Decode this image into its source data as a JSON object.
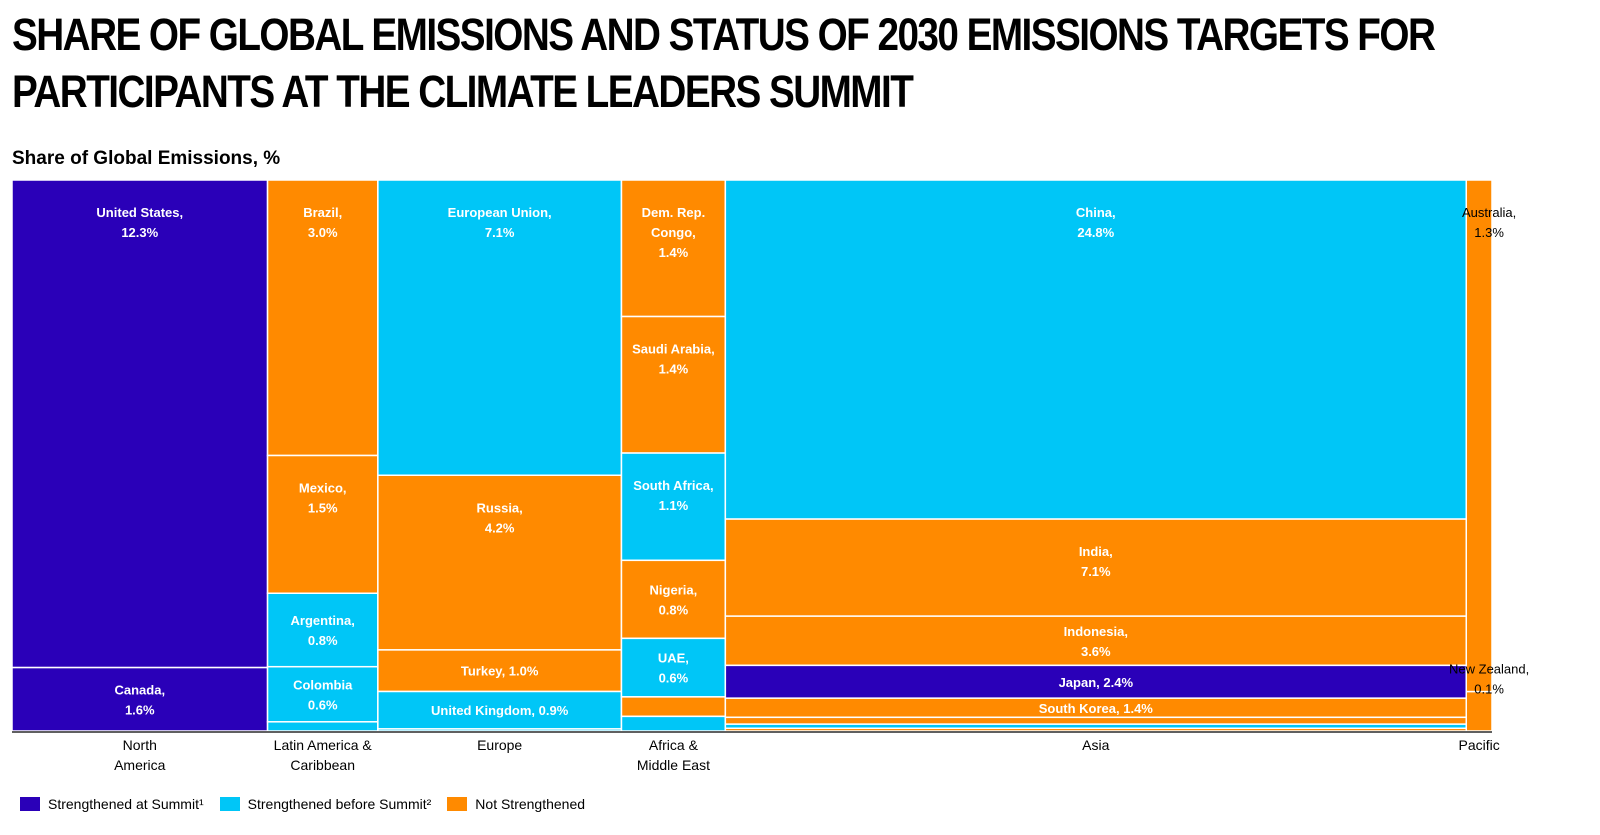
{
  "title_lines": [
    "SHARE OF GLOBAL EMISSIONS AND STATUS OF 2030 EMISSIONS TARGETS FOR",
    "PARTICIPANTS AT THE CLIMATE LEADERS SUMMIT"
  ],
  "colors": {
    "strengthened_at_summit": "#2a00b8",
    "strengthened_before_summit": "#00c6f7",
    "not_strengthened": "#ff8a00"
  },
  "chart_data": {
    "type": "mosaic",
    "title": "SHARE OF GLOBAL EMISSIONS AND STATUS OF 2030 EMISSIONS TARGETS FOR PARTICIPANTS AT THE CLIMATE LEADERS SUMMIT",
    "ylabel": "Share of Global Emissions, %",
    "legend": [
      {
        "key": "strengthened_at_summit",
        "label": "Strengthened at Summit¹"
      },
      {
        "key": "strengthened_before_summit",
        "label": "Strengthened before Summit²"
      },
      {
        "key": "not_strengthened",
        "label": "Not Strengthened"
      }
    ],
    "legend_position": "bottom-left",
    "regions": [
      {
        "name": "North America",
        "label_lines": [
          "North",
          "America"
        ],
        "countries": [
          {
            "name": "United States",
            "label_lines": [
              "United States,",
              "12.3%"
            ],
            "value": 12.3,
            "status": "strengthened_at_summit"
          },
          {
            "name": "Canada",
            "label_lines": [
              "Canada,",
              "1.6%"
            ],
            "value": 1.6,
            "status": "strengthened_at_summit"
          }
        ]
      },
      {
        "name": "Latin America & Caribbean",
        "label_lines": [
          "Latin America &",
          "Caribbean"
        ],
        "countries": [
          {
            "name": "Brazil",
            "label_lines": [
              "Brazil,",
              "3.0%"
            ],
            "value": 3.0,
            "status": "not_strengthened"
          },
          {
            "name": "Mexico",
            "label_lines": [
              "Mexico,",
              "1.5%"
            ],
            "value": 1.5,
            "status": "not_strengthened"
          },
          {
            "name": "Argentina",
            "label_lines": [
              "Argentina,",
              "0.8%"
            ],
            "value": 0.8,
            "status": "strengthened_before_summit"
          },
          {
            "name": "Colombia",
            "label_lines": [
              "Colombia",
              "0.6%"
            ],
            "value": 0.6,
            "status": "strengthened_before_summit"
          },
          {
            "name": "",
            "label_lines": [],
            "value": 0.1,
            "status": "strengthened_before_summit"
          }
        ]
      },
      {
        "name": "Europe",
        "label_lines": [
          "Europe"
        ],
        "countries": [
          {
            "name": "European Union",
            "label_lines": [
              "European Union,",
              "7.1%"
            ],
            "value": 7.1,
            "status": "strengthened_before_summit"
          },
          {
            "name": "Russia",
            "label_lines": [
              "Russia,",
              "4.2%"
            ],
            "value": 4.2,
            "status": "not_strengthened"
          },
          {
            "name": "Turkey",
            "label_lines": [
              "Turkey, 1.0%"
            ],
            "value": 1.0,
            "status": "not_strengthened"
          },
          {
            "name": "United Kingdom",
            "label_lines": [
              "United Kingdom, 0.9%"
            ],
            "value": 0.9,
            "status": "strengthened_before_summit"
          },
          {
            "name": "",
            "label_lines": [],
            "value": 0.05,
            "status": "strengthened_before_summit"
          }
        ]
      },
      {
        "name": "Africa & Middle East",
        "label_lines": [
          "Africa &",
          "Middle East"
        ],
        "countries": [
          {
            "name": "Dem. Rep. Congo",
            "label_lines": [
              "Dem. Rep.",
              "Congo,",
              "1.4%"
            ],
            "value": 1.4,
            "status": "not_strengthened"
          },
          {
            "name": "Saudi Arabia",
            "label_lines": [
              "Saudi Arabia,",
              "1.4%"
            ],
            "value": 1.4,
            "status": "not_strengthened"
          },
          {
            "name": "South Africa",
            "label_lines": [
              "South Africa,",
              "1.1%"
            ],
            "value": 1.1,
            "status": "strengthened_before_summit"
          },
          {
            "name": "Nigeria",
            "label_lines": [
              "Nigeria,",
              "0.8%"
            ],
            "value": 0.8,
            "status": "not_strengthened"
          },
          {
            "name": "UAE",
            "label_lines": [
              "UAE,",
              "0.6%"
            ],
            "value": 0.6,
            "status": "strengthened_before_summit"
          },
          {
            "name": "",
            "label_lines": [],
            "value": 0.2,
            "status": "not_strengthened"
          },
          {
            "name": "",
            "label_lines": [],
            "value": 0.15,
            "status": "strengthened_before_summit"
          }
        ]
      },
      {
        "name": "Asia",
        "label_lines": [
          "Asia"
        ],
        "countries": [
          {
            "name": "China",
            "label_lines": [
              "China,",
              "24.8%"
            ],
            "value": 24.8,
            "status": "strengthened_before_summit"
          },
          {
            "name": "India",
            "label_lines": [
              "India,",
              "7.1%"
            ],
            "value": 7.1,
            "status": "not_strengthened"
          },
          {
            "name": "Indonesia",
            "label_lines": [
              "Indonesia,",
              "3.6%"
            ],
            "value": 3.6,
            "status": "not_strengthened"
          },
          {
            "name": "Japan",
            "label_lines": [
              "Japan, 2.4%"
            ],
            "value": 2.4,
            "status": "strengthened_at_summit"
          },
          {
            "name": "South Korea",
            "label_lines": [
              "South Korea, 1.4%"
            ],
            "value": 1.4,
            "status": "not_strengthened"
          },
          {
            "name": "",
            "label_lines": [],
            "value": 0.5,
            "status": "not_strengthened"
          },
          {
            "name": "",
            "label_lines": [],
            "value": 0.3,
            "status": "strengthened_before_summit"
          },
          {
            "name": "",
            "label_lines": [],
            "value": 0.2,
            "status": "not_strengthened"
          }
        ]
      },
      {
        "name": "Pacific",
        "label_lines": [
          "Pacific"
        ],
        "countries": [
          {
            "name": "Australia",
            "label_lines": [
              "Australia,",
              "1.3%"
            ],
            "value": 1.3,
            "status": "not_strengthened"
          },
          {
            "name": "New Zealand",
            "label_lines": [
              "New Zealand,",
              "0.1%"
            ],
            "value": 0.1,
            "status": "not_strengthened"
          }
        ]
      }
    ]
  }
}
